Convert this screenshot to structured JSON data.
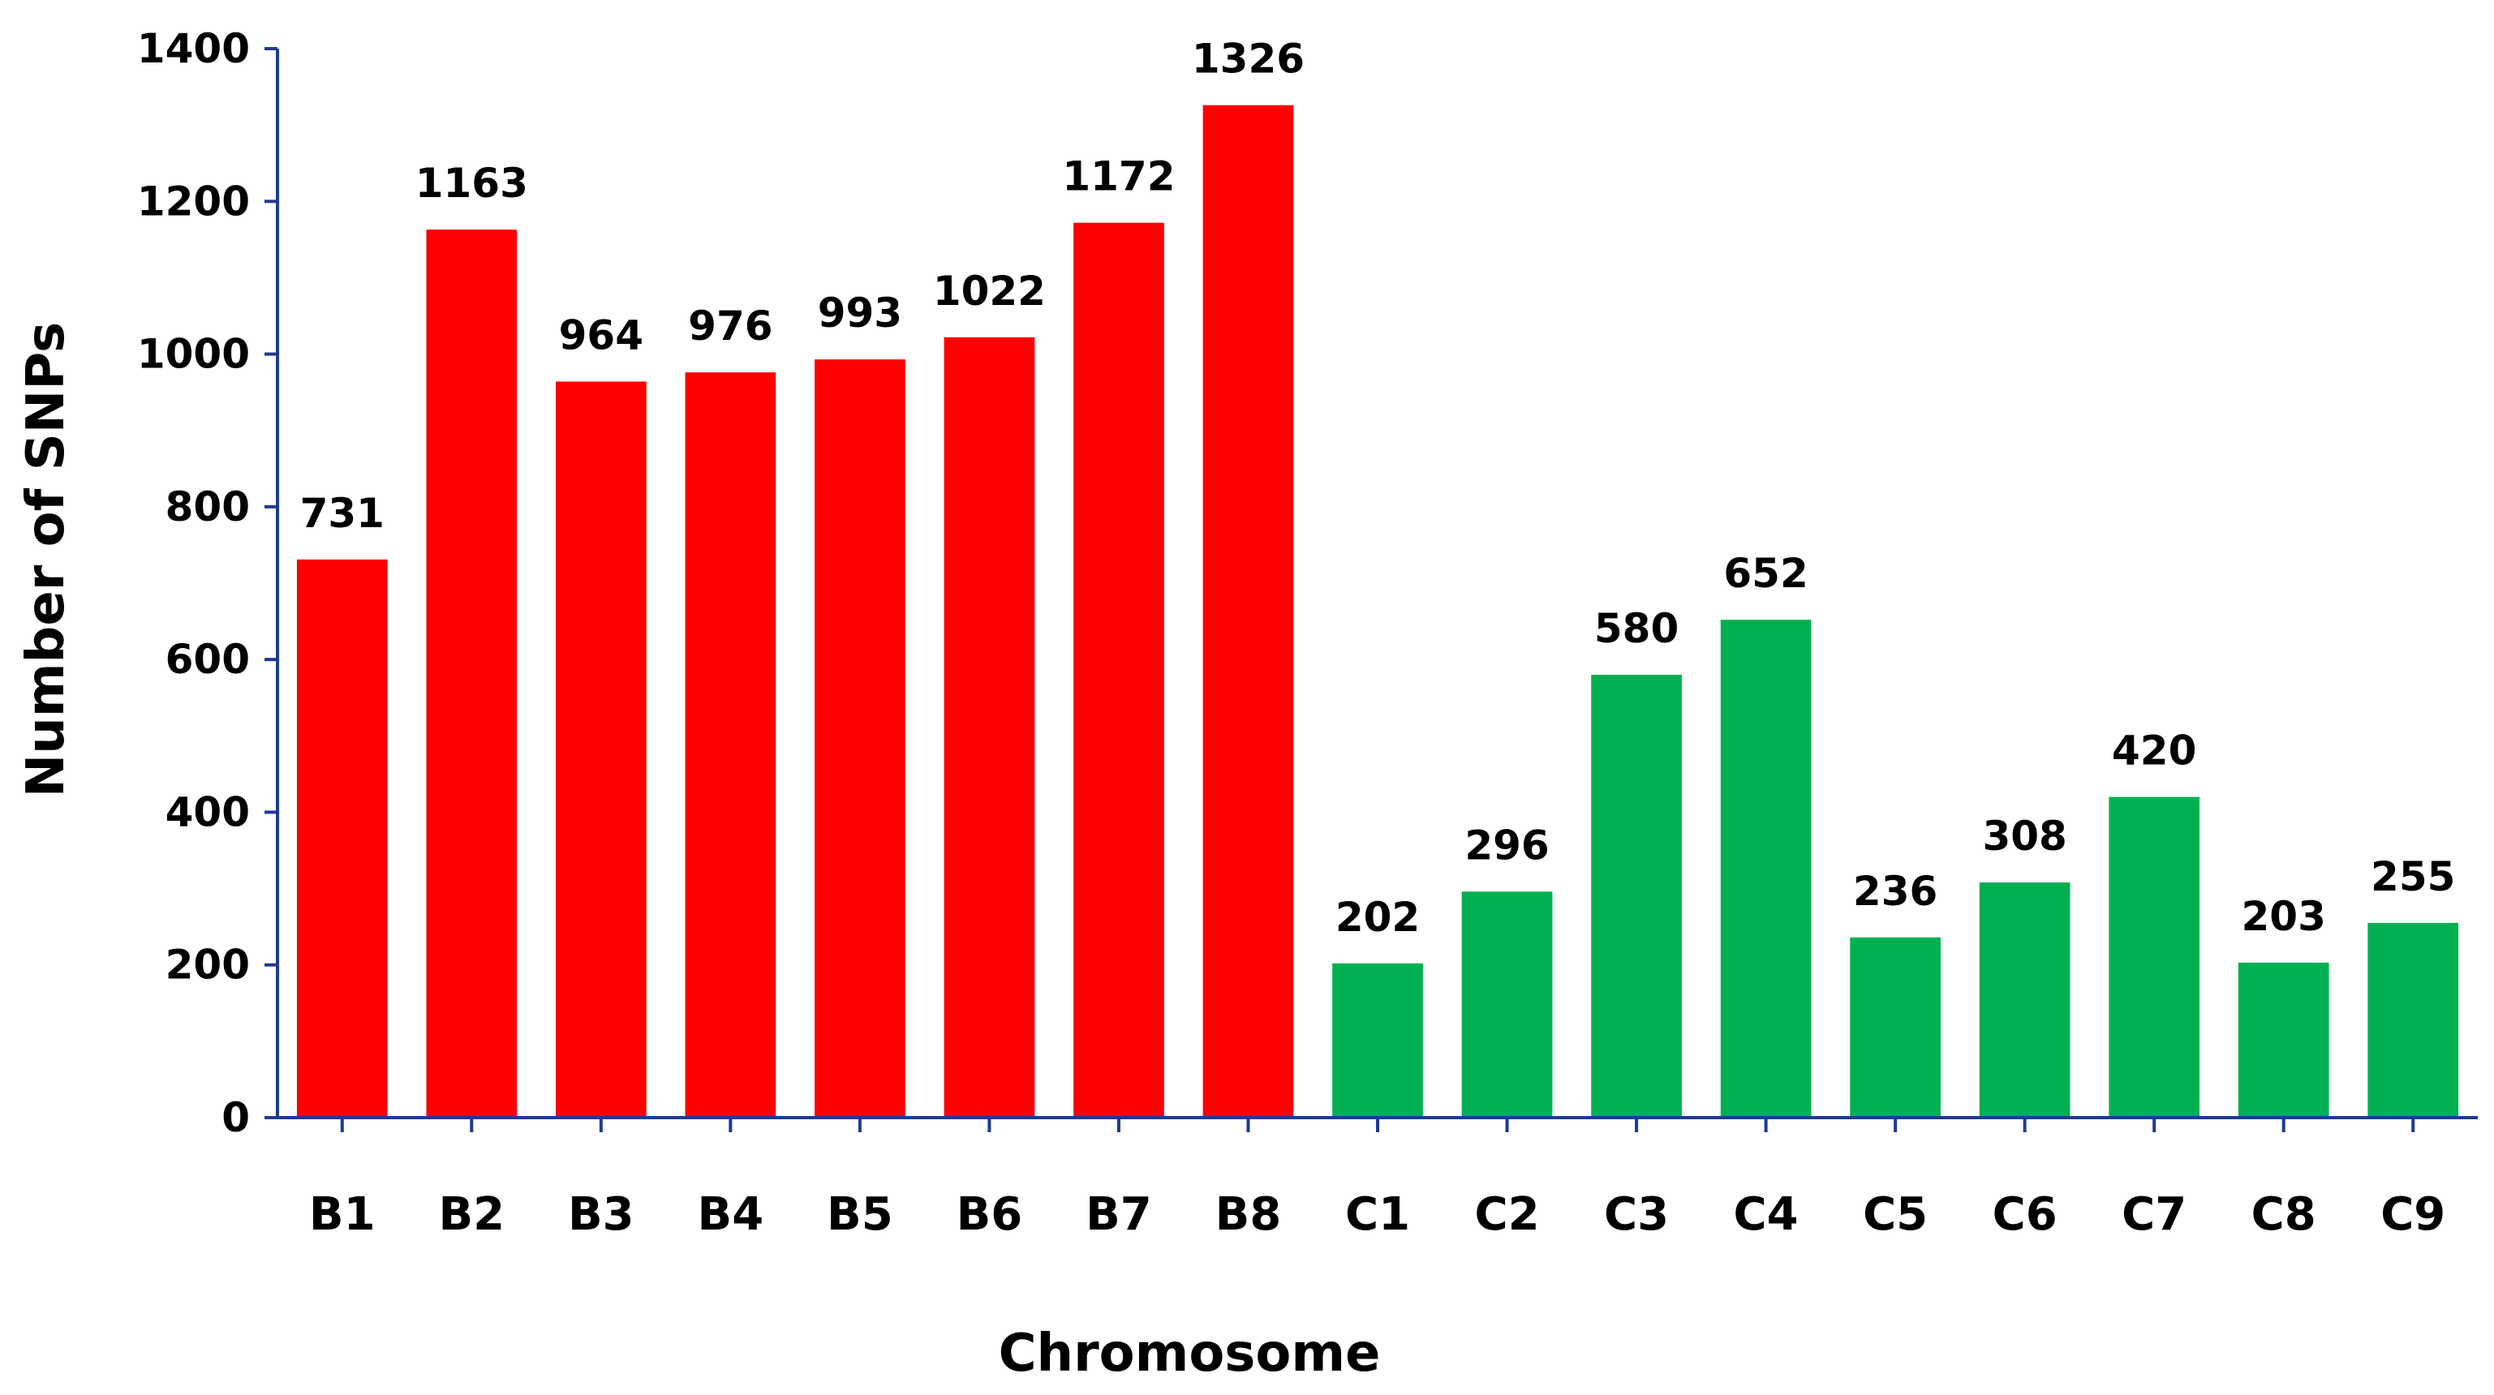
{
  "chart_data": {
    "type": "bar",
    "title": "",
    "xlabel": "Chromosome",
    "ylabel": "Number  of SNPs",
    "ylim": [
      0,
      1400
    ],
    "yticks": [
      0,
      200,
      400,
      600,
      800,
      1000,
      1200,
      1400
    ],
    "grid": false,
    "legend": "none",
    "categories": [
      "B1",
      "B2",
      "B3",
      "B4",
      "B5",
      "B6",
      "B7",
      "B8",
      "C1",
      "C2",
      "C3",
      "C4",
      "C5",
      "C6",
      "C7",
      "C8",
      "C9"
    ],
    "values": [
      731,
      1163,
      964,
      976,
      993,
      1022,
      1172,
      1326,
      202,
      296,
      580,
      652,
      236,
      308,
      420,
      203,
      255
    ],
    "bar_colors": [
      "#ff0000",
      "#ff0000",
      "#ff0000",
      "#ff0000",
      "#ff0000",
      "#ff0000",
      "#ff0000",
      "#ff0000",
      "#00b050",
      "#00b050",
      "#00b050",
      "#00b050",
      "#00b050",
      "#00b050",
      "#00b050",
      "#00b050",
      "#00b050"
    ],
    "axis_color": "#1f3a93",
    "text_color": "#000000"
  }
}
